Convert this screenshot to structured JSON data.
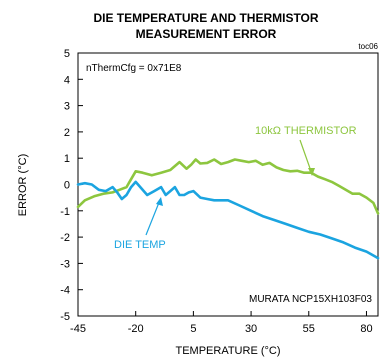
{
  "chart_data": {
    "type": "line",
    "title_line1": "DIE TEMPERATURE AND THERMISTOR",
    "title_line2": "MEASUREMENT ERROR",
    "figure_code": "toc06",
    "xlabel": "TEMPERATURE (°C)",
    "ylabel": "ERROR (°C)",
    "xlim": [
      -45,
      85
    ],
    "ylim": [
      -5,
      5
    ],
    "x_ticks": [
      -45,
      -20,
      5,
      30,
      55,
      80
    ],
    "y_ticks": [
      5,
      4,
      3,
      2,
      1,
      0,
      -1,
      -2,
      -3,
      -4,
      -5
    ],
    "grid": false,
    "annotations": {
      "config": "nThermCfg = 0x71E8",
      "thermistor_label": "10kΩ THERMISTOR",
      "die_label": "DIE TEMP",
      "part_label": "MURATA NCP15XH103F03"
    },
    "colors": {
      "thermistor": "#8dc63f",
      "die": "#1ba4e0",
      "axis": "#000000"
    },
    "series": [
      {
        "name": "10kΩ THERMISTOR",
        "x": [
          -45,
          -42,
          -38,
          -34,
          -30,
          -27,
          -24,
          -22,
          -20,
          -17,
          -13,
          -9,
          -5,
          -1,
          2,
          4,
          6,
          8,
          11,
          14,
          17,
          20,
          23,
          26,
          29,
          32,
          35,
          38,
          41,
          44,
          47,
          50,
          53,
          56,
          59,
          62,
          65,
          68,
          71,
          74,
          77,
          80,
          83,
          85
        ],
        "values": [
          -0.85,
          -0.6,
          -0.45,
          -0.35,
          -0.3,
          -0.2,
          -0.1,
          0.2,
          0.5,
          0.45,
          0.35,
          0.45,
          0.55,
          0.85,
          0.6,
          0.75,
          0.95,
          0.8,
          0.82,
          0.95,
          0.78,
          0.85,
          0.95,
          0.9,
          0.85,
          0.9,
          0.75,
          0.82,
          0.65,
          0.55,
          0.5,
          0.52,
          0.45,
          0.45,
          0.3,
          0.2,
          0.1,
          -0.05,
          -0.2,
          -0.35,
          -0.35,
          -0.5,
          -0.7,
          -1.1
        ]
      },
      {
        "name": "DIE TEMP",
        "x": [
          -45,
          -42,
          -39,
          -36,
          -33,
          -30,
          -28,
          -26,
          -24,
          -22,
          -20,
          -18,
          -15,
          -12,
          -9,
          -7,
          -5,
          -3,
          -1,
          1,
          3,
          5,
          8,
          11,
          14,
          17,
          20,
          25,
          30,
          35,
          40,
          45,
          50,
          55,
          60,
          65,
          70,
          75,
          80,
          85
        ],
        "values": [
          0,
          0.05,
          0.0,
          -0.2,
          -0.25,
          -0.1,
          -0.3,
          -0.55,
          -0.4,
          -0.1,
          0.1,
          -0.1,
          -0.4,
          -0.25,
          -0.1,
          -0.4,
          -0.25,
          -0.1,
          -0.4,
          -0.4,
          -0.3,
          -0.25,
          -0.5,
          -0.55,
          -0.6,
          -0.6,
          -0.6,
          -0.8,
          -1.0,
          -1.2,
          -1.35,
          -1.5,
          -1.65,
          -1.8,
          -1.9,
          -2.05,
          -2.2,
          -2.4,
          -2.55,
          -2.8
        ]
      }
    ]
  }
}
